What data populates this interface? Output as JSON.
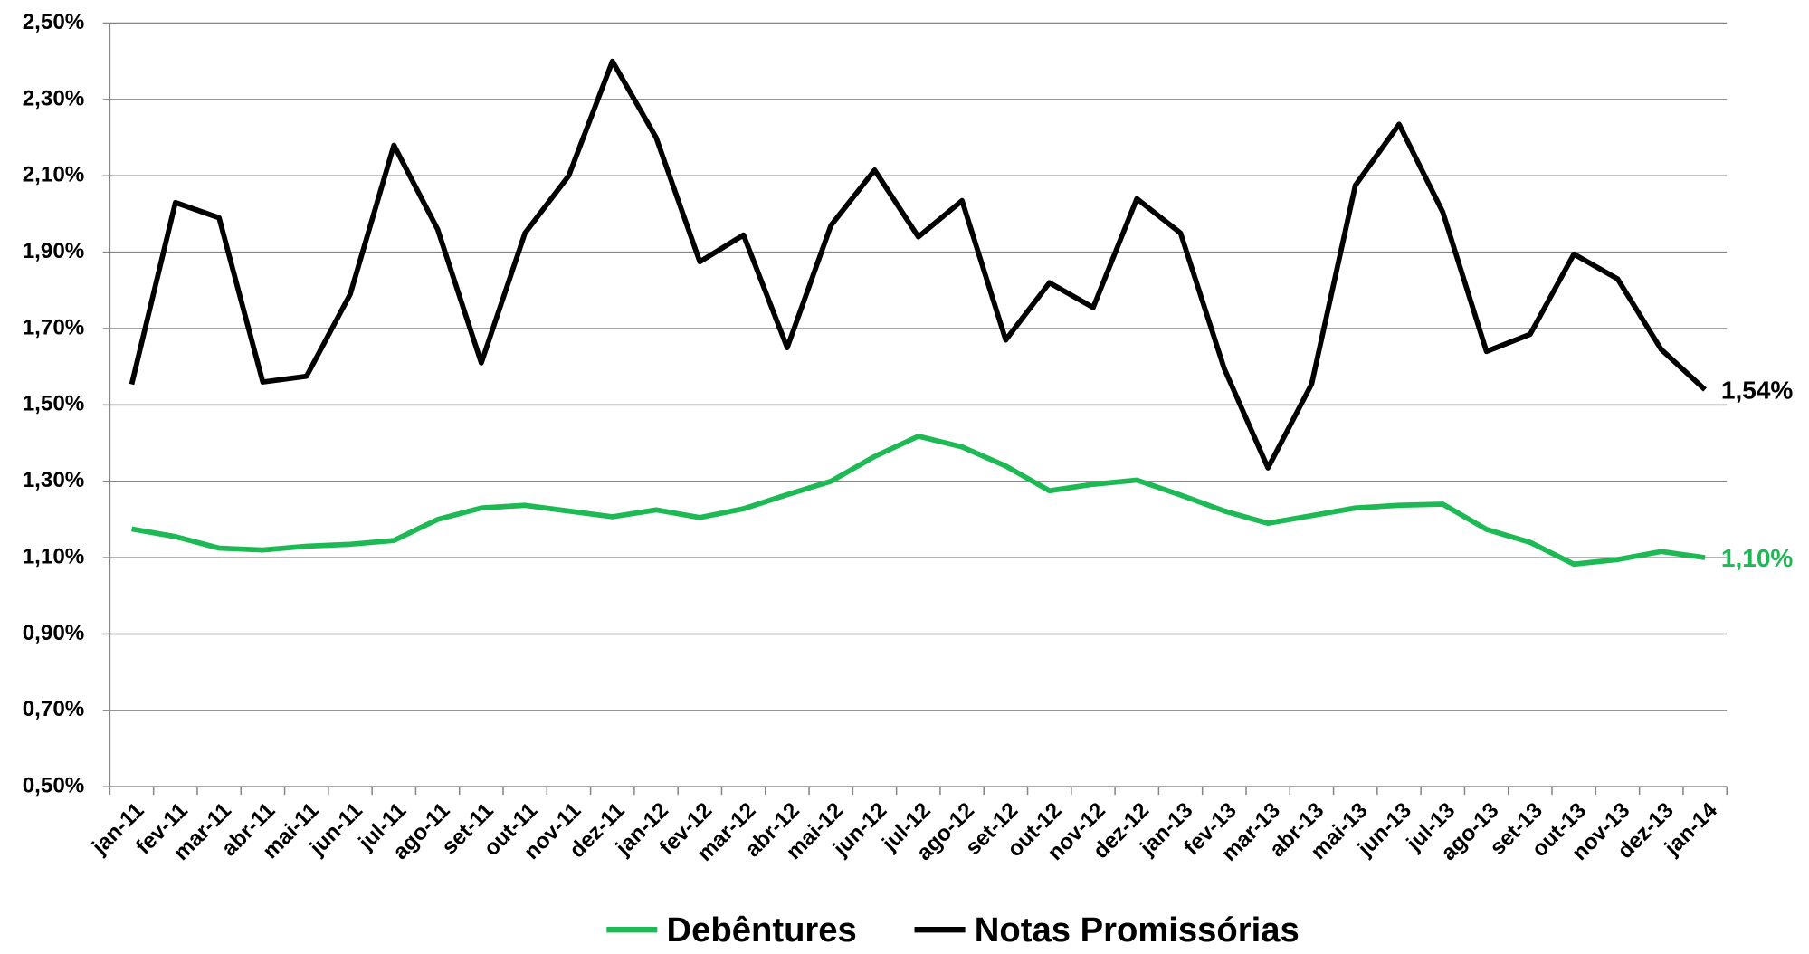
{
  "chart_data": {
    "type": "line",
    "categories": [
      "jan-11",
      "fev-11",
      "mar-11",
      "abr-11",
      "mai-11",
      "jun-11",
      "jul-11",
      "ago-11",
      "set-11",
      "out-11",
      "nov-11",
      "dez-11",
      "jan-12",
      "fev-12",
      "mar-12",
      "abr-12",
      "mai-12",
      "jun-12",
      "jul-12",
      "ago-12",
      "set-12",
      "out-12",
      "nov-12",
      "dez-12",
      "jan-13",
      "fev-13",
      "mar-13",
      "abr-13",
      "mai-13",
      "jun-13",
      "jul-13",
      "ago-13",
      "set-13",
      "out-13",
      "nov-13",
      "dez-13",
      "jan-14"
    ],
    "series": [
      {
        "name": "Debêntures",
        "color": "#1db954",
        "values": [
          1.175,
          1.155,
          1.125,
          1.12,
          1.13,
          1.135,
          1.145,
          1.2,
          1.23,
          1.237,
          1.222,
          1.207,
          1.225,
          1.205,
          1.228,
          1.265,
          1.3,
          1.365,
          1.418,
          1.39,
          1.34,
          1.275,
          1.292,
          1.303,
          1.264,
          1.222,
          1.19,
          1.21,
          1.23,
          1.237,
          1.24,
          1.174,
          1.14,
          1.083,
          1.095,
          1.116,
          1.1
        ],
        "value_labels": [
          null,
          null,
          null,
          null,
          null,
          null,
          null,
          null,
          null,
          null,
          null,
          null,
          null,
          null,
          null,
          null,
          null,
          null,
          null,
          null,
          null,
          null,
          null,
          null,
          null,
          null,
          null,
          null,
          null,
          null,
          null,
          null,
          null,
          null,
          null,
          null,
          "1,10%"
        ]
      },
      {
        "name": "Notas Promissórias",
        "color": "#000000",
        "values": [
          1.554,
          2.03,
          1.99,
          1.56,
          1.575,
          1.79,
          2.18,
          1.96,
          1.61,
          1.95,
          2.1,
          2.4,
          2.2,
          1.875,
          1.945,
          1.65,
          1.97,
          2.115,
          1.94,
          2.035,
          1.67,
          1.82,
          1.755,
          2.04,
          1.95,
          1.595,
          1.335,
          1.555,
          2.075,
          2.235,
          2.005,
          1.64,
          1.685,
          1.895,
          1.83,
          1.645,
          1.54
        ],
        "value_labels": [
          null,
          null,
          null,
          null,
          null,
          null,
          null,
          null,
          null,
          null,
          null,
          null,
          null,
          null,
          null,
          null,
          null,
          null,
          null,
          null,
          null,
          null,
          null,
          null,
          null,
          null,
          null,
          null,
          null,
          null,
          null,
          null,
          null,
          null,
          null,
          null,
          "1,54%"
        ]
      }
    ],
    "ylim": [
      0.5,
      2.5
    ],
    "yticks": [
      {
        "value": 0.5,
        "label": "0,50%"
      },
      {
        "value": 0.7,
        "label": "0,70%"
      },
      {
        "value": 0.9,
        "label": "0,90%"
      },
      {
        "value": 1.1,
        "label": "1,10%"
      },
      {
        "value": 1.3,
        "label": "1,30%"
      },
      {
        "value": 1.5,
        "label": "1,50%"
      },
      {
        "value": 1.7,
        "label": "1,70%"
      },
      {
        "value": 1.9,
        "label": "1,90%"
      },
      {
        "value": 2.1,
        "label": "2,10%"
      },
      {
        "value": 2.3,
        "label": "2,30%"
      },
      {
        "value": 2.5,
        "label": "2,50%"
      }
    ],
    "grid": true,
    "legend": "bottom"
  }
}
